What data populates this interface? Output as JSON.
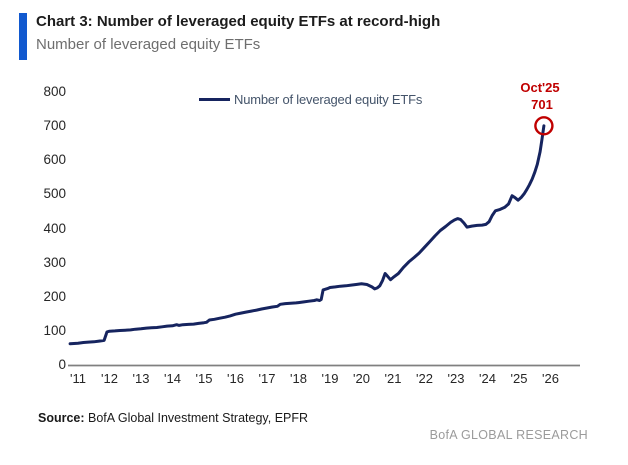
{
  "header": {
    "accent_color": "#1159cf"
  },
  "chart_data": {
    "type": "line",
    "title": "Chart 3: Number of leveraged equity ETFs at record-high",
    "subtitle": "Number of leveraged equity ETFs",
    "xlabel": "",
    "ylabel": "",
    "ylim": [
      0,
      800
    ],
    "xlim": [
      2010.7,
      2026.6
    ],
    "grid": false,
    "legend": {
      "label": "Number of leveraged equity ETFs",
      "position": "top-center"
    },
    "y_ticks": [
      0,
      100,
      200,
      300,
      400,
      500,
      600,
      700,
      800
    ],
    "x_ticks": [
      {
        "year": 2011,
        "label": "'11"
      },
      {
        "year": 2012,
        "label": "'12"
      },
      {
        "year": 2013,
        "label": "'13"
      },
      {
        "year": 2014,
        "label": "'14"
      },
      {
        "year": 2015,
        "label": "'15"
      },
      {
        "year": 2016,
        "label": "'16"
      },
      {
        "year": 2017,
        "label": "'17"
      },
      {
        "year": 2018,
        "label": "'18"
      },
      {
        "year": 2019,
        "label": "'19"
      },
      {
        "year": 2020,
        "label": "'20"
      },
      {
        "year": 2021,
        "label": "'21"
      },
      {
        "year": 2022,
        "label": "'22"
      },
      {
        "year": 2023,
        "label": "'23"
      },
      {
        "year": 2024,
        "label": "'24"
      },
      {
        "year": 2025,
        "label": "'25"
      },
      {
        "year": 2026,
        "label": "'26"
      }
    ],
    "series": [
      {
        "name": "Number of leveraged equity ETFs",
        "color": "#16245f",
        "points": [
          [
            2010.75,
            62
          ],
          [
            2011,
            64
          ],
          [
            2011.17,
            66
          ],
          [
            2011.33,
            67
          ],
          [
            2011.5,
            68
          ],
          [
            2011.67,
            70
          ],
          [
            2011.83,
            72
          ],
          [
            2011.92,
            97
          ],
          [
            2012,
            99
          ],
          [
            2012.17,
            100
          ],
          [
            2012.33,
            101
          ],
          [
            2012.5,
            102
          ],
          [
            2012.67,
            103
          ],
          [
            2012.83,
            105
          ],
          [
            2013,
            106
          ],
          [
            2013.17,
            108
          ],
          [
            2013.33,
            109
          ],
          [
            2013.5,
            110
          ],
          [
            2013.67,
            112
          ],
          [
            2013.83,
            114
          ],
          [
            2014,
            115
          ],
          [
            2014.13,
            118
          ],
          [
            2014.21,
            116
          ],
          [
            2014.33,
            118
          ],
          [
            2014.5,
            119
          ],
          [
            2014.67,
            120
          ],
          [
            2014.83,
            122
          ],
          [
            2015,
            124
          ],
          [
            2015.08,
            125
          ],
          [
            2015.17,
            132
          ],
          [
            2015.33,
            134
          ],
          [
            2015.5,
            137
          ],
          [
            2015.67,
            140
          ],
          [
            2015.83,
            144
          ],
          [
            2016,
            149
          ],
          [
            2016.17,
            152
          ],
          [
            2016.33,
            155
          ],
          [
            2016.5,
            158
          ],
          [
            2016.67,
            161
          ],
          [
            2016.83,
            164
          ],
          [
            2017,
            167
          ],
          [
            2017.17,
            170
          ],
          [
            2017.33,
            172
          ],
          [
            2017.42,
            178
          ],
          [
            2017.58,
            180
          ],
          [
            2017.75,
            181
          ],
          [
            2017.92,
            182
          ],
          [
            2018,
            183
          ],
          [
            2018.17,
            185
          ],
          [
            2018.33,
            187
          ],
          [
            2018.5,
            189
          ],
          [
            2018.58,
            191
          ],
          [
            2018.67,
            189
          ],
          [
            2018.72,
            192
          ],
          [
            2018.78,
            220
          ],
          [
            2018.92,
            224
          ],
          [
            2019,
            227
          ],
          [
            2019.17,
            229
          ],
          [
            2019.33,
            231
          ],
          [
            2019.5,
            232
          ],
          [
            2019.67,
            234
          ],
          [
            2019.83,
            236
          ],
          [
            2020,
            238
          ],
          [
            2020.17,
            236
          ],
          [
            2020.33,
            229
          ],
          [
            2020.42,
            223
          ],
          [
            2020.5,
            226
          ],
          [
            2020.58,
            232
          ],
          [
            2020.67,
            248
          ],
          [
            2020.75,
            268
          ],
          [
            2020.83,
            260
          ],
          [
            2020.92,
            250
          ],
          [
            2021,
            256
          ],
          [
            2021.17,
            268
          ],
          [
            2021.33,
            286
          ],
          [
            2021.5,
            302
          ],
          [
            2021.67,
            315
          ],
          [
            2021.83,
            328
          ],
          [
            2022,
            345
          ],
          [
            2022.17,
            362
          ],
          [
            2022.33,
            378
          ],
          [
            2022.5,
            394
          ],
          [
            2022.67,
            406
          ],
          [
            2022.83,
            418
          ],
          [
            2022.95,
            425
          ],
          [
            2023.05,
            429
          ],
          [
            2023.15,
            426
          ],
          [
            2023.25,
            416
          ],
          [
            2023.35,
            404
          ],
          [
            2023.5,
            407
          ],
          [
            2023.67,
            409
          ],
          [
            2023.83,
            410
          ],
          [
            2023.95,
            412
          ],
          [
            2024.05,
            420
          ],
          [
            2024.15,
            438
          ],
          [
            2024.25,
            452
          ],
          [
            2024.4,
            456
          ],
          [
            2024.55,
            462
          ],
          [
            2024.67,
            472
          ],
          [
            2024.78,
            496
          ],
          [
            2024.88,
            490
          ],
          [
            2024.97,
            483
          ],
          [
            2025.08,
            492
          ],
          [
            2025.17,
            503
          ],
          [
            2025.25,
            515
          ],
          [
            2025.33,
            528
          ],
          [
            2025.42,
            545
          ],
          [
            2025.5,
            565
          ],
          [
            2025.58,
            588
          ],
          [
            2025.67,
            625
          ],
          [
            2025.73,
            662
          ],
          [
            2025.79,
            701
          ]
        ]
      }
    ],
    "annotation": {
      "date_label": "Oct'25",
      "value_label": "701",
      "x": 2025.79,
      "y": 701,
      "color": "#c00000"
    }
  },
  "axis": {
    "line_color": "#808080",
    "tick_color": "#262626"
  },
  "footer": {
    "source_label": "Source:",
    "source_text": " BofA Global Investment Strategy, EPFR",
    "brand": "BofA GLOBAL RESEARCH"
  }
}
